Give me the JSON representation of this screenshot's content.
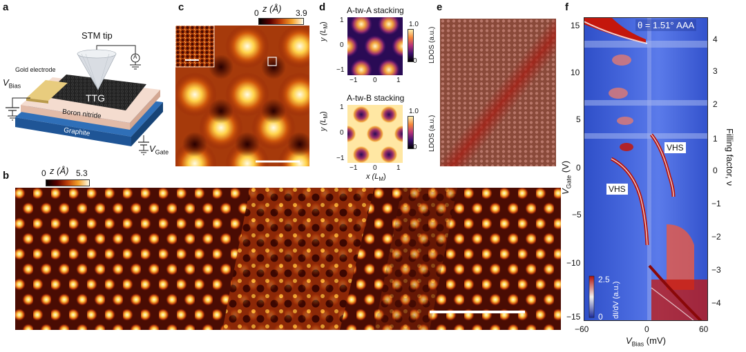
{
  "panels": {
    "a": {
      "letter": "a",
      "stm_tip": "STM tip",
      "gold_electrode": "Gold electrode",
      "v_bias": "V",
      "v_bias_sub": "Bias",
      "sample": "TTG",
      "boron_nitride": "Boron nitride",
      "graphite": "Graphite",
      "v_gate": "V",
      "v_gate_sub": "Gate",
      "ammeter": "A"
    },
    "b": {
      "letter": "b",
      "colorbar_label": "z (Å)",
      "colorbar_min": "0",
      "colorbar_max": "5.3"
    },
    "c": {
      "letter": "c",
      "colorbar_label": "z (Å)",
      "colorbar_min": "0",
      "colorbar_max": "3.9"
    },
    "d": {
      "letter": "d",
      "top_title": "A-tw-A stacking",
      "bottom_title": "A-tw-B stacking",
      "y_label": "y (L",
      "x_label": "x (L",
      "unit_sub": "M",
      "x_ticks": [
        "−1",
        "0",
        "1"
      ],
      "y_ticks": [
        "1",
        "0",
        "−1"
      ],
      "cb_max": "1.0",
      "cb_min": "0",
      "cb_label": "LDOS (a.u.)"
    },
    "e": {
      "letter": "e"
    },
    "f": {
      "letter": "f",
      "theta_label": "θ = 1.51° AAA",
      "x_label_main": "V",
      "x_label_sub": "Bias",
      "x_label_unit": " (mV)",
      "y_label_main": "V",
      "y_label_sub": "Gate",
      "y_label_unit": " (V)",
      "right_label": "Filling factor, ν",
      "x_ticks": [
        "−60",
        "0",
        "60"
      ],
      "y_ticks": [
        "15",
        "10",
        "5",
        "0",
        "−5",
        "−10",
        "−15"
      ],
      "right_ticks": [
        "4",
        "3",
        "2",
        "1",
        "0",
        "−1",
        "−2",
        "−3",
        "−4"
      ],
      "vhs_upper": "VHS",
      "vhs_lower": "VHS",
      "cb_max": "2.5",
      "cb_min": "0",
      "cb_label": "dI/dV (a.u.)"
    }
  },
  "colors": {
    "afmhot_dark": "#1a0000",
    "afmhot_mid": "#c0400a",
    "afmhot_bright": "#ffe39a",
    "map_blue": "#3b5bd6",
    "map_red": "#c4170c",
    "graphite": "#2f6fb8",
    "boron_nitride": "#f1d3c4",
    "gold": "#e6c97a"
  }
}
